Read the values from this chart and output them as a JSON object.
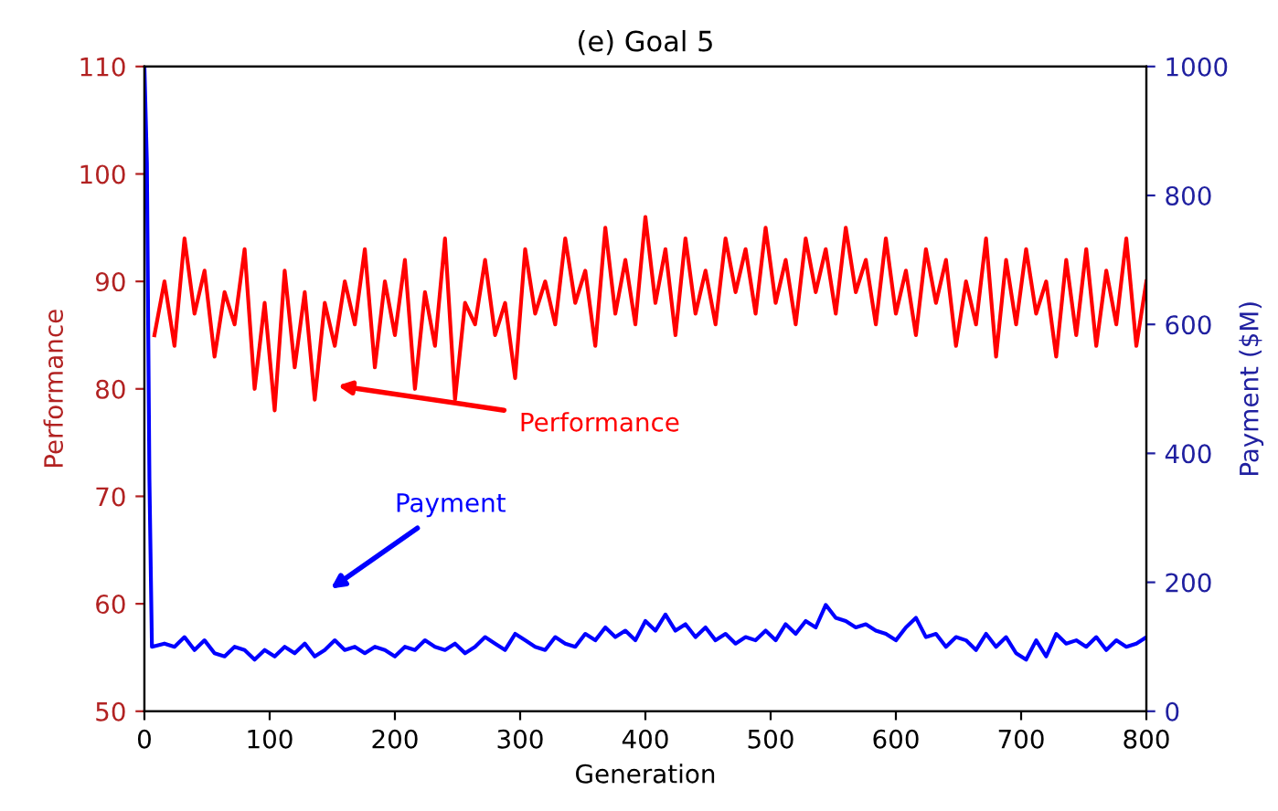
{
  "chart_data": {
    "type": "line",
    "title": "(e) Goal 5",
    "xlabel": "Generation",
    "ylabel": "Performance",
    "y2label": "Payment ($M)",
    "xlim": [
      0,
      800
    ],
    "xticks": [
      0,
      100,
      200,
      300,
      400,
      500,
      600,
      700,
      800
    ],
    "ylim": [
      50,
      110
    ],
    "yticks": [
      50,
      60,
      70,
      80,
      90,
      100,
      110
    ],
    "y2lim": [
      0,
      1000
    ],
    "y2ticks": [
      0,
      200,
      400,
      600,
      800,
      1000
    ],
    "grid": false,
    "marker": "none",
    "line_style": "solid",
    "series": [
      {
        "color": "#ff0000",
        "x": [
          8,
          16,
          24,
          32,
          40,
          48,
          56,
          64,
          72,
          80,
          88,
          96,
          104,
          112,
          120,
          128,
          136,
          144,
          152,
          160,
          168,
          176,
          184,
          192,
          200,
          208,
          216,
          224,
          232,
          240,
          248,
          256,
          264,
          272,
          280,
          288,
          296,
          304,
          312,
          320,
          328,
          336,
          344,
          352,
          360,
          368,
          376,
          384,
          392,
          400,
          408,
          416,
          424,
          432,
          440,
          448,
          456,
          464,
          472,
          480,
          488,
          496,
          504,
          512,
          520,
          528,
          536,
          544,
          552,
          560,
          568,
          576,
          584,
          592,
          600,
          608,
          616,
          624,
          632,
          640,
          648,
          656,
          664,
          672,
          680,
          688,
          696,
          704,
          712,
          720,
          728,
          736,
          744,
          752,
          760,
          768,
          776,
          784,
          792,
          800
        ],
        "values": [
          85,
          90,
          84,
          94,
          87,
          91,
          83,
          89,
          86,
          93,
          80,
          88,
          78,
          91,
          82,
          89,
          79,
          88,
          84,
          90,
          86,
          93,
          82,
          90,
          85,
          92,
          80,
          89,
          84,
          94,
          79,
          88,
          86,
          92,
          85,
          88,
          81,
          93,
          87,
          90,
          86,
          94,
          88,
          91,
          84,
          95,
          87,
          92,
          86,
          96,
          88,
          93,
          85,
          94,
          87,
          91,
          86,
          94,
          89,
          93,
          87,
          95,
          88,
          92,
          86,
          94,
          89,
          93,
          87,
          95,
          89,
          92,
          86,
          94,
          87,
          91,
          85,
          93,
          88,
          92,
          84,
          90,
          86,
          94,
          83,
          92,
          86,
          93,
          87,
          90,
          83,
          92,
          85,
          93,
          84,
          91,
          86,
          94,
          84,
          90
        ]
      },
      {
        "color": "#0000ff",
        "axis": "y2",
        "x": [
          0,
          2,
          4,
          6,
          16,
          24,
          32,
          40,
          48,
          56,
          64,
          72,
          80,
          88,
          96,
          104,
          112,
          120,
          128,
          136,
          144,
          152,
          160,
          168,
          176,
          184,
          192,
          200,
          208,
          216,
          224,
          232,
          240,
          248,
          256,
          264,
          272,
          280,
          288,
          296,
          304,
          312,
          320,
          328,
          336,
          344,
          352,
          360,
          368,
          376,
          384,
          392,
          400,
          408,
          416,
          424,
          432,
          440,
          448,
          456,
          464,
          472,
          480,
          488,
          496,
          504,
          512,
          520,
          528,
          536,
          544,
          552,
          560,
          568,
          576,
          584,
          592,
          600,
          608,
          616,
          624,
          632,
          640,
          648,
          656,
          664,
          672,
          680,
          688,
          696,
          704,
          712,
          720,
          728,
          736,
          744,
          752,
          760,
          768,
          776,
          784,
          792,
          800
        ],
        "values": [
          1000,
          850,
          360,
          100,
          105,
          100,
          115,
          95,
          110,
          90,
          85,
          100,
          95,
          80,
          95,
          85,
          100,
          90,
          105,
          85,
          95,
          110,
          95,
          100,
          90,
          100,
          95,
          85,
          100,
          95,
          110,
          100,
          95,
          105,
          90,
          100,
          115,
          105,
          95,
          120,
          110,
          100,
          95,
          115,
          105,
          100,
          120,
          110,
          130,
          115,
          125,
          110,
          140,
          125,
          150,
          125,
          135,
          115,
          130,
          110,
          120,
          105,
          115,
          110,
          125,
          110,
          135,
          120,
          140,
          130,
          165,
          145,
          140,
          130,
          135,
          125,
          120,
          110,
          130,
          145,
          115,
          120,
          100,
          115,
          110,
          95,
          120,
          100,
          115,
          90,
          80,
          110,
          85,
          120,
          105,
          110,
          100,
          115,
          95,
          110,
          100,
          105,
          115
        ]
      }
    ],
    "annotations": [
      "Performance",
      "Payment"
    ]
  }
}
